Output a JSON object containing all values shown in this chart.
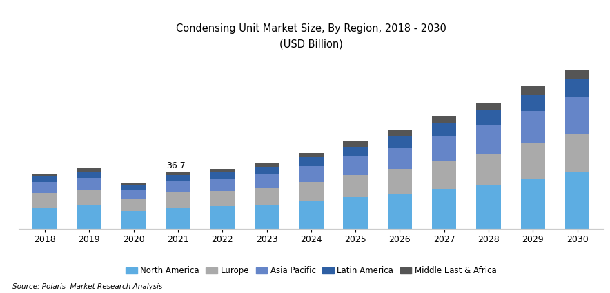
{
  "title_line1": "Condensing Unit Market Size, By Region, 2018 - 2030",
  "title_line2": "(USD Billion)",
  "source": "Source: Polaris  Market Research Analysis",
  "years": [
    2018,
    2019,
    2020,
    2021,
    2022,
    2023,
    2024,
    2025,
    2026,
    2027,
    2028,
    2029,
    2030
  ],
  "segments": [
    "North America",
    "Europe",
    "Asia Pacific",
    "Latin America",
    "Middle East & Africa"
  ],
  "colors": [
    "#5DADE2",
    "#AAAAAA",
    "#6585C8",
    "#2E5FA3",
    "#555555"
  ],
  "data": {
    "North America": [
      13.5,
      14.8,
      11.5,
      13.8,
      14.5,
      15.5,
      17.5,
      20.5,
      22.5,
      25.5,
      28.5,
      32.5,
      36.5
    ],
    "Europe": [
      9.5,
      10.0,
      8.0,
      9.5,
      10.0,
      11.0,
      12.5,
      14.0,
      16.0,
      18.0,
      20.0,
      22.5,
      25.0
    ],
    "Asia Pacific": [
      7.0,
      8.0,
      5.5,
      7.5,
      8.0,
      9.0,
      10.5,
      12.0,
      14.0,
      16.5,
      18.5,
      21.0,
      23.5
    ],
    "Latin America": [
      3.5,
      4.0,
      3.0,
      3.8,
      4.0,
      4.5,
      5.5,
      6.5,
      7.5,
      8.5,
      9.5,
      10.5,
      12.0
    ],
    "Middle East & Africa": [
      2.0,
      2.5,
      1.8,
      2.1,
      2.2,
      2.5,
      3.0,
      3.5,
      4.0,
      4.5,
      5.0,
      5.5,
      6.0
    ]
  },
  "annotation_year": 2021,
  "annotation_text": "36.7",
  "ylim": [
    0,
    110
  ],
  "bar_width": 0.55,
  "background_color": "#FFFFFF",
  "border_color": "#CCCCCC"
}
